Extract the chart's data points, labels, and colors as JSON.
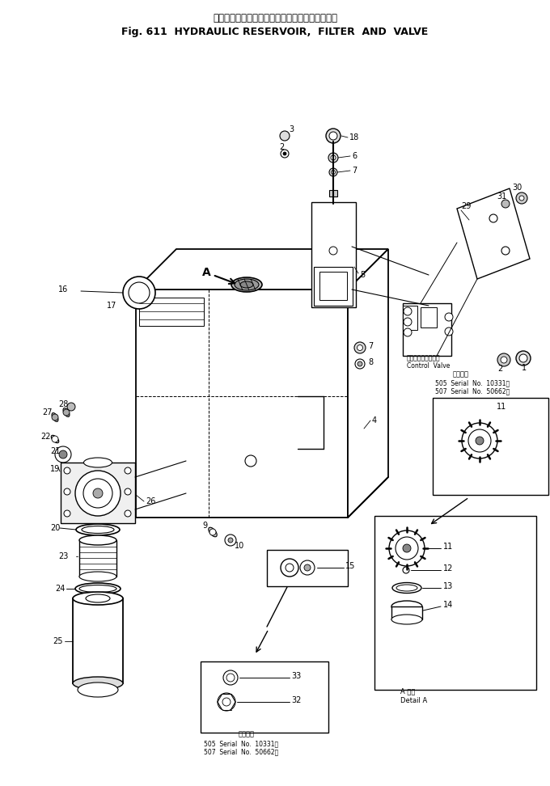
{
  "title_jp": "ハイドロリックリザーバ、フィルタおよびバルブ",
  "title_en": "Fig. 611  HYDRAULIC RESERVOIR,  FILTER  AND  VALVE",
  "bg_color": "#ffffff",
  "line_color": "#000000",
  "text_color": "#000000",
  "fig_width": 6.8,
  "fig_height": 9.72,
  "dpi": 100,
  "control_valve_jp": "コントロールバルブ",
  "control_valve_en": "Control  Valve",
  "detail_a_text_jp": "A 詳細",
  "detail_a_text_en": "Detail A",
  "serial_upper": [
    "適用号機",
    "505  Serial  No.  10331～",
    "507  Serial  No.  50662～"
  ],
  "serial_lower": [
    "適用号機",
    "505  Serial  No.  10331～",
    "507  Serial  No.  50662～"
  ]
}
